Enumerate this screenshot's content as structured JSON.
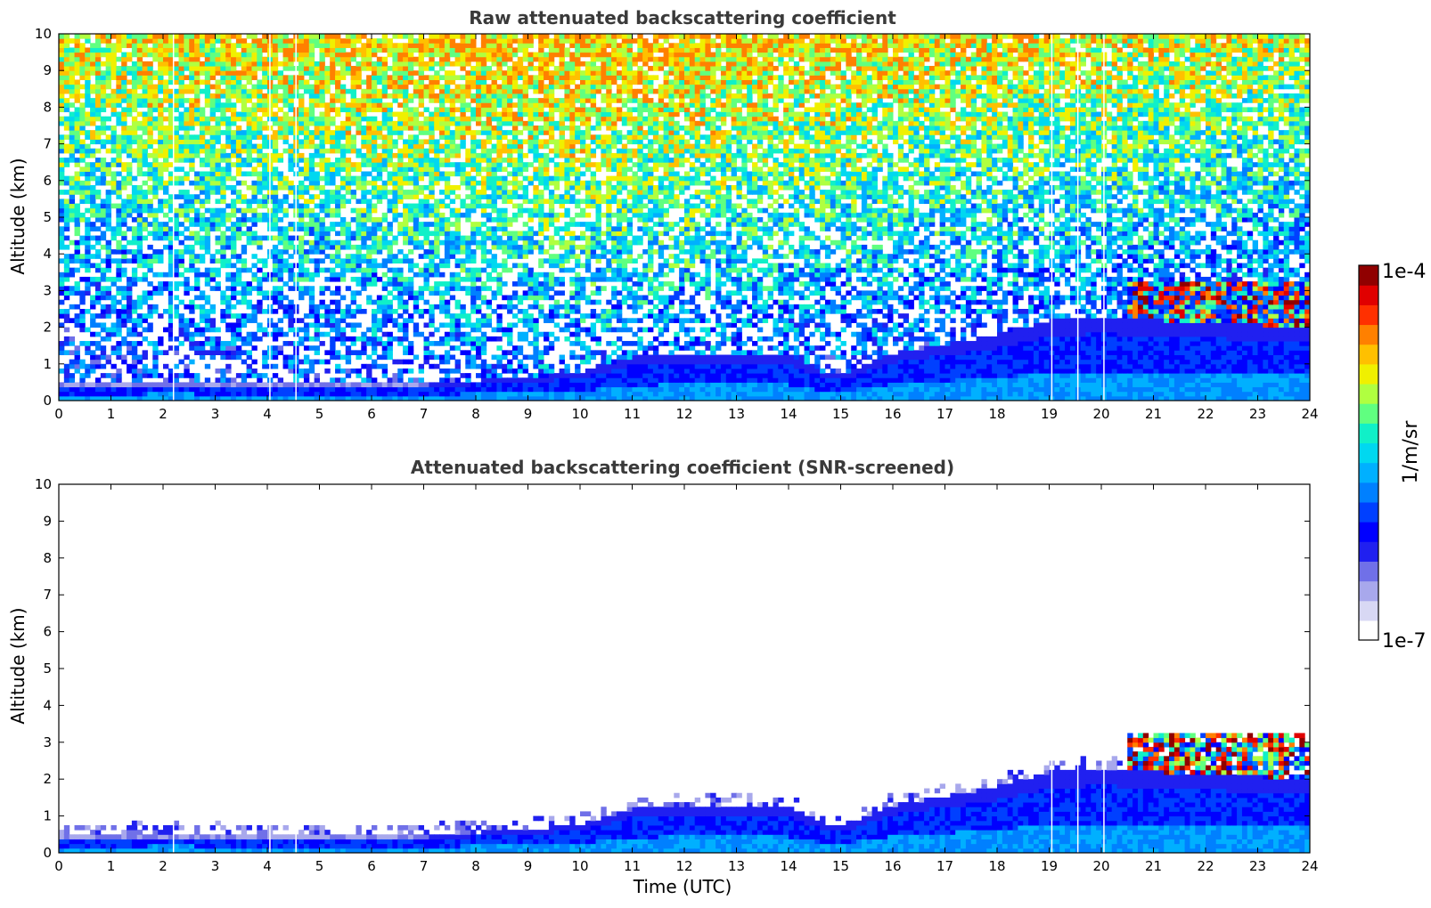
{
  "chart_data": [
    {
      "type": "heatmap",
      "title": "Raw attenuated backscattering coefficient",
      "xlabel": "",
      "ylabel": "Altitude (km)",
      "xlim": [
        0,
        24
      ],
      "ylim": [
        0,
        10
      ],
      "xticks": [
        0,
        1,
        2,
        3,
        4,
        5,
        6,
        7,
        8,
        9,
        10,
        11,
        12,
        13,
        14,
        15,
        16,
        17,
        18,
        19,
        20,
        21,
        22,
        23,
        24
      ],
      "yticks": [
        0,
        1,
        2,
        3,
        4,
        5,
        6,
        7,
        8,
        9,
        10
      ],
      "data_gaps_utc": [
        2.2,
        4.05,
        4.55,
        19.05,
        19.55,
        20.05
      ],
      "features": {
        "boundary_layer_top_km": [
          [
            0,
            0.45
          ],
          [
            2,
            0.55
          ],
          [
            4,
            0.5
          ],
          [
            6,
            0.45
          ],
          [
            8,
            0.55
          ],
          [
            10,
            0.75
          ],
          [
            11,
            1.2
          ],
          [
            12,
            1.3
          ],
          [
            14,
            1.25
          ],
          [
            14.8,
            0.7
          ],
          [
            15.2,
            0.8
          ],
          [
            16,
            1.3
          ],
          [
            18,
            1.8
          ],
          [
            19,
            2.2
          ],
          [
            20,
            2.3
          ],
          [
            21,
            2.2
          ],
          [
            24,
            2.0
          ]
        ],
        "cloud_layer": {
          "time_range_utc": [
            20.5,
            24
          ],
          "altitude_km": [
            1.9,
            3.3
          ]
        }
      },
      "screened": false
    },
    {
      "type": "heatmap",
      "title": "Attenuated backscattering coefficient (SNR-screened)",
      "xlabel": "Time (UTC)",
      "ylabel": "Altitude (km)",
      "xlim": [
        0,
        24
      ],
      "ylim": [
        0,
        10
      ],
      "xticks": [
        0,
        1,
        2,
        3,
        4,
        5,
        6,
        7,
        8,
        9,
        10,
        11,
        12,
        13,
        14,
        15,
        16,
        17,
        18,
        19,
        20,
        21,
        22,
        23,
        24
      ],
      "yticks": [
        0,
        1,
        2,
        3,
        4,
        5,
        6,
        7,
        8,
        9,
        10
      ],
      "data_gaps_utc": [
        2.2,
        4.05,
        4.55,
        19.05,
        19.55,
        20.05
      ],
      "features": {
        "boundary_layer_top_km": [
          [
            0,
            0.45
          ],
          [
            2,
            0.55
          ],
          [
            4,
            0.5
          ],
          [
            6,
            0.45
          ],
          [
            8,
            0.55
          ],
          [
            10,
            0.75
          ],
          [
            11,
            1.2
          ],
          [
            12,
            1.3
          ],
          [
            14,
            1.25
          ],
          [
            14.8,
            0.7
          ],
          [
            15.2,
            0.8
          ],
          [
            16,
            1.3
          ],
          [
            18,
            1.8
          ],
          [
            19,
            2.2
          ],
          [
            20,
            2.3
          ],
          [
            21,
            2.2
          ],
          [
            24,
            2.0
          ]
        ],
        "cloud_layer": {
          "time_range_utc": [
            20.5,
            24
          ],
          "altitude_km": [
            1.9,
            3.3
          ]
        }
      },
      "screened": true
    }
  ],
  "colorbar": {
    "label": "1/m/sr",
    "min_label": "1e-7",
    "max_label": "1e-4",
    "scale": "log",
    "colors": [
      "#ffffff",
      "#d8d8f4",
      "#a8a8ec",
      "#7070e8",
      "#2020f0",
      "#0000ff",
      "#0040ff",
      "#0080ff",
      "#00b0ff",
      "#00d8f0",
      "#10f0c8",
      "#60ff80",
      "#b0ff40",
      "#f0f000",
      "#ffc000",
      "#ff8000",
      "#ff3000",
      "#e00000",
      "#900000"
    ]
  }
}
